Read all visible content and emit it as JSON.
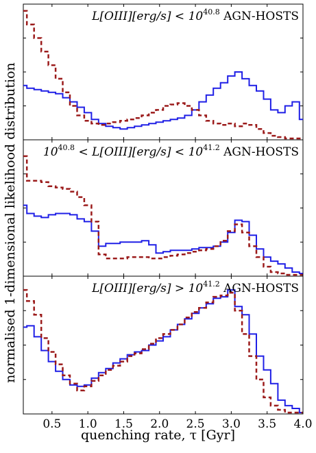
{
  "figure": {
    "ylabel": "normalised 1-dimensional likelihood distribution",
    "xlabel": "quenching rate, τ [Gyr]",
    "xtick_labels": [
      "0.5",
      "1.0",
      "1.5",
      "2.0",
      "2.5",
      "3.0",
      "3.5",
      "4.0"
    ],
    "colors": {
      "solid": "#1f1fe6",
      "dashed": "#9b1b1b"
    }
  },
  "chart_data": [
    {
      "type": "line",
      "panel_label": {
        "prefix": "L[OIII][erg/s] < 10",
        "exponent": "40.8",
        "suffix": "AGN-HOSTS"
      },
      "xlim": [
        0.1,
        4.0
      ],
      "ylim": [
        0,
        1
      ],
      "grid": false,
      "series": [
        {
          "style": "solid",
          "x": [
            0.1,
            0.2,
            0.3,
            0.4,
            0.5,
            0.6,
            0.7,
            0.8,
            0.9,
            1.0,
            1.1,
            1.2,
            1.3,
            1.4,
            1.5,
            1.6,
            1.7,
            1.8,
            1.9,
            2.0,
            2.1,
            2.2,
            2.3,
            2.4,
            2.5,
            2.6,
            2.7,
            2.8,
            2.9,
            3.0,
            3.1,
            3.2,
            3.3,
            3.4,
            3.5,
            3.6,
            3.7,
            3.8,
            3.9,
            4.0
          ],
          "y": [
            0.4,
            0.38,
            0.37,
            0.36,
            0.35,
            0.34,
            0.31,
            0.28,
            0.24,
            0.2,
            0.15,
            0.12,
            0.1,
            0.09,
            0.08,
            0.09,
            0.1,
            0.11,
            0.12,
            0.13,
            0.14,
            0.15,
            0.16,
            0.18,
            0.22,
            0.28,
            0.33,
            0.38,
            0.42,
            0.47,
            0.5,
            0.45,
            0.4,
            0.36,
            0.3,
            0.22,
            0.2,
            0.25,
            0.28,
            0.15
          ]
        },
        {
          "style": "dashed",
          "x": [
            0.1,
            0.2,
            0.3,
            0.4,
            0.5,
            0.6,
            0.7,
            0.8,
            0.9,
            1.0,
            1.1,
            1.2,
            1.3,
            1.4,
            1.5,
            1.6,
            1.7,
            1.8,
            1.9,
            2.0,
            2.1,
            2.2,
            2.3,
            2.4,
            2.5,
            2.6,
            2.7,
            2.8,
            2.9,
            3.0,
            3.1,
            3.2,
            3.3,
            3.4,
            3.5,
            3.6,
            3.7,
            3.8,
            3.9,
            4.0
          ],
          "y": [
            0.95,
            0.85,
            0.75,
            0.65,
            0.55,
            0.45,
            0.35,
            0.25,
            0.18,
            0.14,
            0.12,
            0.11,
            0.12,
            0.13,
            0.14,
            0.15,
            0.16,
            0.18,
            0.2,
            0.22,
            0.25,
            0.26,
            0.27,
            0.25,
            0.22,
            0.18,
            0.14,
            0.12,
            0.11,
            0.12,
            0.1,
            0.12,
            0.11,
            0.08,
            0.05,
            0.03,
            0.02,
            0.01,
            0.01,
            0.01
          ]
        }
      ]
    },
    {
      "type": "line",
      "panel_label": {
        "prefix": "10",
        "exponent": "40.8",
        "middle": " < L[OIII][erg/s] < 10",
        "exponent2": "41.2",
        "suffix": "AGN-HOSTS"
      },
      "xlim": [
        0.1,
        4.0
      ],
      "ylim": [
        0,
        1
      ],
      "grid": false,
      "series": [
        {
          "style": "solid",
          "x": [
            0.1,
            0.2,
            0.3,
            0.4,
            0.5,
            0.6,
            0.7,
            0.8,
            0.9,
            1.0,
            1.1,
            1.2,
            1.3,
            1.4,
            1.5,
            1.6,
            1.7,
            1.8,
            1.9,
            2.0,
            2.1,
            2.2,
            2.3,
            2.4,
            2.5,
            2.6,
            2.7,
            2.8,
            2.9,
            3.0,
            3.1,
            3.2,
            3.3,
            3.4,
            3.5,
            3.6,
            3.7,
            3.8,
            3.9,
            4.0
          ],
          "y": [
            0.52,
            0.46,
            0.44,
            0.43,
            0.45,
            0.46,
            0.46,
            0.45,
            0.42,
            0.4,
            0.33,
            0.22,
            0.24,
            0.24,
            0.25,
            0.25,
            0.25,
            0.26,
            0.23,
            0.17,
            0.18,
            0.19,
            0.19,
            0.19,
            0.2,
            0.21,
            0.21,
            0.22,
            0.25,
            0.32,
            0.41,
            0.4,
            0.3,
            0.2,
            0.14,
            0.11,
            0.09,
            0.06,
            0.03,
            0.02
          ]
        },
        {
          "style": "dashed",
          "x": [
            0.1,
            0.2,
            0.3,
            0.4,
            0.5,
            0.6,
            0.7,
            0.8,
            0.9,
            1.0,
            1.1,
            1.2,
            1.3,
            1.4,
            1.5,
            1.6,
            1.7,
            1.8,
            1.9,
            2.0,
            2.1,
            2.2,
            2.3,
            2.4,
            2.5,
            2.6,
            2.7,
            2.8,
            2.9,
            3.0,
            3.1,
            3.2,
            3.3,
            3.4,
            3.5,
            3.6,
            3.7,
            3.8,
            3.9,
            4.0
          ],
          "y": [
            0.88,
            0.7,
            0.7,
            0.69,
            0.66,
            0.65,
            0.64,
            0.62,
            0.58,
            0.52,
            0.4,
            0.16,
            0.13,
            0.13,
            0.13,
            0.14,
            0.14,
            0.14,
            0.13,
            0.13,
            0.14,
            0.15,
            0.16,
            0.17,
            0.18,
            0.19,
            0.2,
            0.22,
            0.26,
            0.33,
            0.38,
            0.32,
            0.22,
            0.14,
            0.07,
            0.03,
            0.02,
            0.01,
            0.01,
            0.01
          ]
        }
      ]
    },
    {
      "type": "line",
      "panel_label": {
        "prefix": "L[OIII][erg/s] > 10",
        "exponent": "41.2",
        "suffix": "AGN-HOSTS"
      },
      "xlim": [
        0.1,
        4.0
      ],
      "ylim": [
        0,
        1
      ],
      "grid": false,
      "series": [
        {
          "style": "solid",
          "x": [
            0.1,
            0.2,
            0.3,
            0.4,
            0.5,
            0.6,
            0.7,
            0.8,
            0.9,
            1.0,
            1.1,
            1.2,
            1.3,
            1.4,
            1.5,
            1.6,
            1.7,
            1.8,
            1.9,
            2.0,
            2.1,
            2.2,
            2.3,
            2.4,
            2.5,
            2.6,
            2.7,
            2.8,
            2.9,
            3.0,
            3.1,
            3.2,
            3.3,
            3.4,
            3.5,
            3.6,
            3.7,
            3.8,
            3.9,
            4.0
          ],
          "y": [
            0.63,
            0.64,
            0.56,
            0.46,
            0.38,
            0.31,
            0.25,
            0.21,
            0.2,
            0.21,
            0.26,
            0.3,
            0.33,
            0.37,
            0.4,
            0.43,
            0.45,
            0.46,
            0.5,
            0.53,
            0.56,
            0.61,
            0.65,
            0.69,
            0.73,
            0.77,
            0.8,
            0.84,
            0.85,
            0.9,
            0.78,
            0.72,
            0.58,
            0.42,
            0.32,
            0.22,
            0.1,
            0.06,
            0.04,
            0.01
          ]
        },
        {
          "style": "dashed",
          "x": [
            0.1,
            0.2,
            0.3,
            0.4,
            0.5,
            0.6,
            0.7,
            0.8,
            0.9,
            1.0,
            1.1,
            1.2,
            1.3,
            1.4,
            1.5,
            1.6,
            1.7,
            1.8,
            1.9,
            2.0,
            2.1,
            2.2,
            2.3,
            2.4,
            2.5,
            2.6,
            2.7,
            2.8,
            2.9,
            3.0,
            3.1,
            3.2,
            3.3,
            3.4,
            3.5,
            3.6,
            3.7,
            3.8,
            3.9,
            4.0
          ],
          "y": [
            0.9,
            0.82,
            0.72,
            0.55,
            0.45,
            0.36,
            0.28,
            0.22,
            0.17,
            0.2,
            0.24,
            0.28,
            0.32,
            0.35,
            0.38,
            0.42,
            0.44,
            0.47,
            0.51,
            0.55,
            0.58,
            0.61,
            0.65,
            0.7,
            0.74,
            0.77,
            0.81,
            0.85,
            0.86,
            0.88,
            0.75,
            0.58,
            0.42,
            0.25,
            0.12,
            0.06,
            0.03,
            0.01,
            0.01,
            0.01
          ]
        }
      ]
    }
  ]
}
